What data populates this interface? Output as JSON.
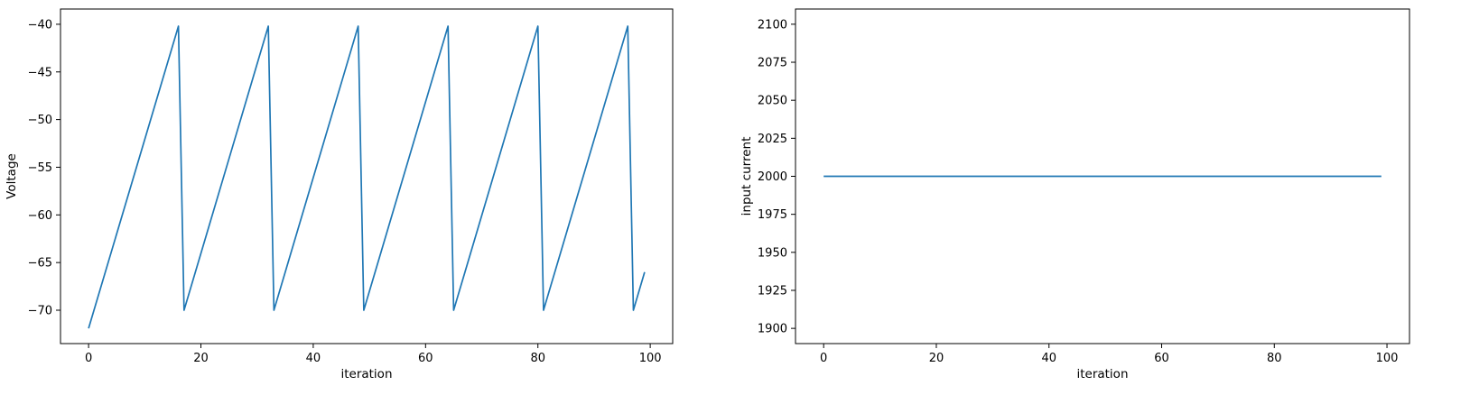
{
  "chart_data": [
    {
      "type": "line",
      "xlabel": "iteration",
      "ylabel": "Voltage",
      "xlim": [
        -5,
        104
      ],
      "ylim": [
        -73.5,
        -38.4
      ],
      "xticks": [
        0,
        20,
        40,
        60,
        80,
        100
      ],
      "yticks": [
        -70,
        -65,
        -60,
        -55,
        -50,
        -45,
        -40
      ],
      "grid": false,
      "series": [
        {
          "color": "#1f77b4",
          "points": [
            [
              0,
              -71.9
            ],
            [
              16,
              -40.2
            ],
            [
              17,
              -70
            ],
            [
              32,
              -40.2
            ],
            [
              33,
              -70
            ],
            [
              48,
              -40.2
            ],
            [
              49,
              -70
            ],
            [
              64,
              -40.2
            ],
            [
              65,
              -70
            ],
            [
              80,
              -40.2
            ],
            [
              81,
              -70
            ],
            [
              96,
              -40.2
            ],
            [
              97,
              -70
            ],
            [
              99,
              -66
            ]
          ]
        }
      ]
    },
    {
      "type": "line",
      "xlabel": "iteration",
      "ylabel": "input current",
      "xlim": [
        -5,
        104
      ],
      "ylim": [
        1890,
        2110
      ],
      "xticks": [
        0,
        20,
        40,
        60,
        80,
        100
      ],
      "yticks": [
        1900,
        1925,
        1950,
        1975,
        2000,
        2025,
        2050,
        2075,
        2100
      ],
      "grid": false,
      "series": [
        {
          "color": "#1f77b4",
          "points": [
            [
              0,
              2000
            ],
            [
              99,
              2000
            ]
          ]
        }
      ]
    }
  ]
}
